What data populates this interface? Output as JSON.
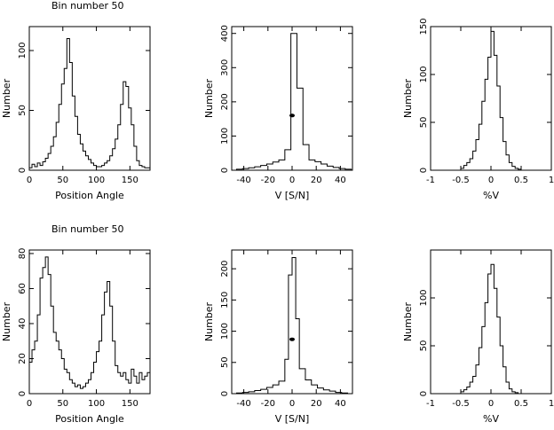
{
  "figure": {
    "row_titles": [
      "Bin number  50",
      "Bin number  50"
    ]
  },
  "chart_data": [
    {
      "type": "bar",
      "row": 1,
      "col": 1,
      "title": "Bin number  50",
      "xlabel": "Position Angle",
      "ylabel": "Number",
      "xlim": [
        0,
        180
      ],
      "ylim": [
        0,
        120
      ],
      "xticks": [
        0,
        50,
        100,
        150
      ],
      "yticks": [
        0,
        50,
        100
      ],
      "bin_edges": [
        0,
        4,
        8,
        12,
        16,
        20,
        24,
        28,
        32,
        36,
        40,
        44,
        48,
        52,
        56,
        60,
        64,
        68,
        72,
        76,
        80,
        84,
        88,
        92,
        96,
        100,
        104,
        108,
        112,
        116,
        120,
        124,
        128,
        132,
        136,
        140,
        144,
        148,
        152,
        156,
        160,
        164,
        168,
        172,
        176,
        180
      ],
      "values": [
        2,
        5,
        3,
        6,
        4,
        7,
        10,
        14,
        20,
        28,
        40,
        55,
        72,
        85,
        110,
        90,
        62,
        45,
        30,
        22,
        16,
        12,
        9,
        6,
        4,
        3,
        3,
        4,
        6,
        8,
        12,
        18,
        26,
        38,
        55,
        74,
        70,
        52,
        38,
        20,
        8,
        4,
        3,
        2,
        2
      ],
      "marker": null
    },
    {
      "type": "bar",
      "row": 1,
      "col": 2,
      "xlabel": "V [S/N]",
      "ylabel": "Number",
      "xlim": [
        -50,
        50
      ],
      "ylim": [
        0,
        420
      ],
      "xticks": [
        -40,
        -20,
        0,
        20,
        40
      ],
      "yticks": [
        0,
        100,
        200,
        300,
        400
      ],
      "bin_edges": [
        -46,
        -41,
        -36,
        -31,
        -26,
        -21,
        -16,
        -11,
        -6,
        -1,
        4,
        9,
        14,
        19,
        24,
        29,
        34,
        39,
        44,
        49
      ],
      "values": [
        3,
        5,
        7,
        10,
        14,
        18,
        24,
        30,
        60,
        400,
        240,
        75,
        30,
        25,
        18,
        12,
        8,
        5,
        3
      ],
      "marker": {
        "x": 0,
        "y": 160
      }
    },
    {
      "type": "bar",
      "row": 1,
      "col": 3,
      "xlabel": "%V",
      "ylabel": "Number",
      "xlim": [
        -1,
        1
      ],
      "ylim": [
        0,
        150
      ],
      "xticks": [
        -1,
        -0.5,
        0,
        0.5,
        1
      ],
      "yticks": [
        0,
        50,
        100,
        150
      ],
      "bin_edges": [
        -0.5,
        -0.45,
        -0.4,
        -0.35,
        -0.3,
        -0.25,
        -0.2,
        -0.15,
        -0.1,
        -0.05,
        0,
        0.05,
        0.1,
        0.15,
        0.2,
        0.25,
        0.3,
        0.35,
        0.4,
        0.45,
        0.5
      ],
      "values": [
        2,
        5,
        8,
        12,
        20,
        32,
        48,
        72,
        95,
        118,
        145,
        120,
        88,
        55,
        30,
        16,
        8,
        4,
        2,
        1
      ],
      "marker": null
    },
    {
      "type": "bar",
      "row": 2,
      "col": 1,
      "title": "Bin number  50",
      "xlabel": "Position Angle",
      "ylabel": "Number",
      "xlim": [
        0,
        180
      ],
      "ylim": [
        0,
        82
      ],
      "xticks": [
        0,
        50,
        100,
        150
      ],
      "yticks": [
        0,
        20,
        40,
        60,
        80
      ],
      "bin_edges": [
        0,
        4,
        8,
        12,
        16,
        20,
        24,
        28,
        32,
        36,
        40,
        44,
        48,
        52,
        56,
        60,
        64,
        68,
        72,
        76,
        80,
        84,
        88,
        92,
        96,
        100,
        104,
        108,
        112,
        116,
        120,
        124,
        128,
        132,
        136,
        140,
        144,
        148,
        152,
        156,
        160,
        164,
        168,
        172,
        176,
        180
      ],
      "values": [
        18,
        25,
        30,
        45,
        66,
        72,
        78,
        68,
        50,
        35,
        30,
        25,
        20,
        14,
        12,
        8,
        6,
        4,
        5,
        3,
        4,
        6,
        8,
        12,
        18,
        24,
        30,
        45,
        58,
        64,
        50,
        30,
        16,
        12,
        10,
        12,
        8,
        6,
        14,
        10,
        6,
        12,
        8,
        10,
        12
      ],
      "marker": null
    },
    {
      "type": "bar",
      "row": 2,
      "col": 2,
      "xlabel": "V [S/N]",
      "ylabel": "Number",
      "xlim": [
        -50,
        50
      ],
      "ylim": [
        0,
        230
      ],
      "xticks": [
        -40,
        -20,
        0,
        20,
        40
      ],
      "yticks": [
        0,
        50,
        100,
        150,
        200
      ],
      "bin_edges": [
        -46,
        -41,
        -36,
        -31,
        -26,
        -21,
        -16,
        -11,
        -6,
        -3,
        0,
        3,
        6,
        11,
        16,
        21,
        26,
        31,
        36,
        41,
        46
      ],
      "values": [
        1,
        2,
        3,
        5,
        7,
        10,
        14,
        20,
        55,
        190,
        218,
        120,
        40,
        22,
        14,
        9,
        6,
        4,
        2,
        1
      ],
      "marker": {
        "x": 0,
        "y": 87
      }
    },
    {
      "type": "bar",
      "row": 2,
      "col": 3,
      "xlabel": "%V",
      "ylabel": "Number",
      "xlim": [
        -1,
        1
      ],
      "ylim": [
        0,
        150
      ],
      "xticks": [
        -1,
        -0.5,
        0,
        0.5,
        1
      ],
      "yticks": [
        0,
        50,
        100
      ],
      "bin_edges": [
        -0.5,
        -0.45,
        -0.4,
        -0.35,
        -0.3,
        -0.25,
        -0.2,
        -0.15,
        -0.1,
        -0.05,
        0,
        0.05,
        0.1,
        0.15,
        0.2,
        0.25,
        0.3,
        0.35,
        0.4,
        0.45
      ],
      "values": [
        2,
        4,
        7,
        12,
        18,
        30,
        48,
        70,
        95,
        125,
        135,
        110,
        80,
        50,
        28,
        12,
        5,
        2,
        1
      ],
      "marker": null
    }
  ]
}
